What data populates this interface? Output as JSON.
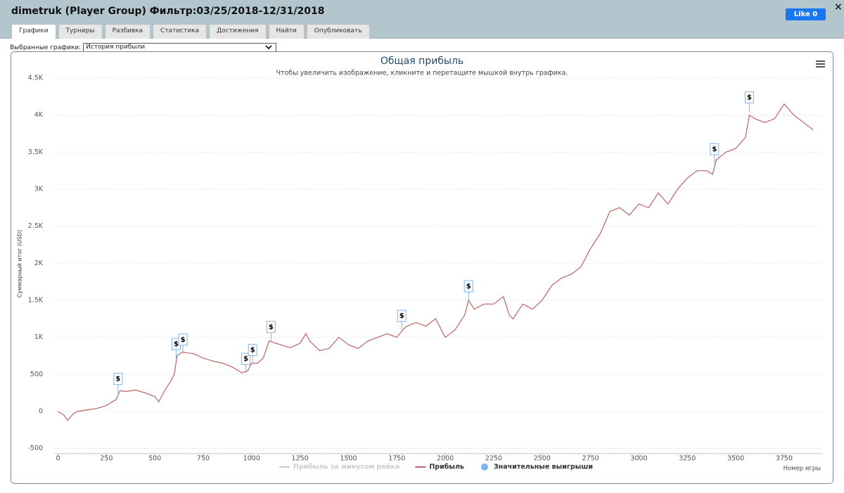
{
  "header": {
    "title": "dimetruk (Player Group) Фильтр:03/25/2018-12/31/2018",
    "like": "Like 0",
    "close": "×"
  },
  "tabs": [
    "Графики",
    "Турниры",
    "Разбивка",
    "Статистика",
    "Достижения",
    "Найти",
    "Опубликовать"
  ],
  "selector": {
    "label": "Выбранные графики:",
    "value": "История прибыли"
  },
  "chart_data": {
    "type": "line",
    "title": "Общая прибыль",
    "subtitle": "Чтобы увеличить изображение, кликните и перетащите мышкой внутрь графика.",
    "x_label": "Номер игры",
    "y_label": "Суммарный итог (USD)",
    "xlim": [
      -20,
      3950
    ],
    "ylim": [
      -560,
      4500
    ],
    "xticks": [
      0,
      250,
      500,
      750,
      1000,
      1250,
      1500,
      1750,
      2000,
      2250,
      2500,
      2750,
      3000,
      3250,
      3500,
      3750
    ],
    "yticks": [
      -500,
      0,
      500,
      {
        "value": 1000,
        "label": "1K"
      },
      {
        "value": 1500,
        "label": "1.5K"
      },
      {
        "value": 2000,
        "label": "2K"
      },
      {
        "value": 2500,
        "label": "2.5K"
      },
      {
        "value": 3000,
        "label": "3K"
      },
      {
        "value": 3500,
        "label": "3.5K"
      },
      {
        "value": 4000,
        "label": "4K"
      },
      {
        "value": 4500,
        "label": "4.5K"
      }
    ],
    "grid": true,
    "series": [
      {
        "name": "Прибыль за минусом рейка",
        "color": "#cccccc",
        "visible": false
      },
      {
        "name": "Прибыль",
        "color": "#b86464",
        "x": [
          0,
          30,
          50,
          75,
          100,
          150,
          200,
          250,
          280,
          300,
          320,
          350,
          400,
          450,
          500,
          520,
          550,
          580,
          600,
          615,
          640,
          700,
          750,
          800,
          850,
          900,
          950,
          980,
          1000,
          1030,
          1060,
          1090,
          1150,
          1200,
          1250,
          1280,
          1300,
          1350,
          1400,
          1450,
          1500,
          1550,
          1600,
          1650,
          1700,
          1750,
          1780,
          1800,
          1850,
          1900,
          1950,
          2000,
          2050,
          2100,
          2120,
          2150,
          2200,
          2250,
          2300,
          2330,
          2350,
          2400,
          2450,
          2500,
          2550,
          2600,
          2650,
          2700,
          2750,
          2800,
          2850,
          2900,
          2950,
          3000,
          3050,
          3100,
          3150,
          3200,
          3250,
          3300,
          3350,
          3380,
          3400,
          3450,
          3500,
          3550,
          3570,
          3600,
          3650,
          3700,
          3750,
          3800,
          3850,
          3900
        ],
        "values": [
          0,
          -50,
          -120,
          -40,
          0,
          20,
          40,
          80,
          130,
          160,
          280,
          270,
          290,
          250,
          200,
          130,
          280,
          400,
          500,
          750,
          800,
          780,
          720,
          680,
          650,
          600,
          520,
          550,
          650,
          650,
          720,
          950,
          900,
          860,
          920,
          1050,
          950,
          820,
          850,
          1000,
          900,
          850,
          950,
          1000,
          1050,
          1000,
          1100,
          1150,
          1200,
          1150,
          1250,
          1000,
          1100,
          1300,
          1500,
          1380,
          1450,
          1450,
          1550,
          1300,
          1250,
          1450,
          1380,
          1500,
          1700,
          1800,
          1850,
          1950,
          2200,
          2400,
          2700,
          2750,
          2650,
          2800,
          2750,
          2950,
          2800,
          3000,
          3150,
          3250,
          3250,
          3200,
          3400,
          3500,
          3550,
          3700,
          4000,
          3950,
          3900,
          3950,
          4150,
          4000,
          3900,
          3800
        ]
      },
      {
        "name": "Значительные выигрыши",
        "color": "#7cb5ec",
        "flag_label": "$",
        "x": [
          310,
          610,
          645,
          970,
          1005,
          1100,
          1775,
          2120,
          3390,
          3570
        ],
        "values": [
          250,
          720,
          780,
          520,
          640,
          950,
          1100,
          1500,
          3350,
          4050
        ]
      }
    ]
  }
}
